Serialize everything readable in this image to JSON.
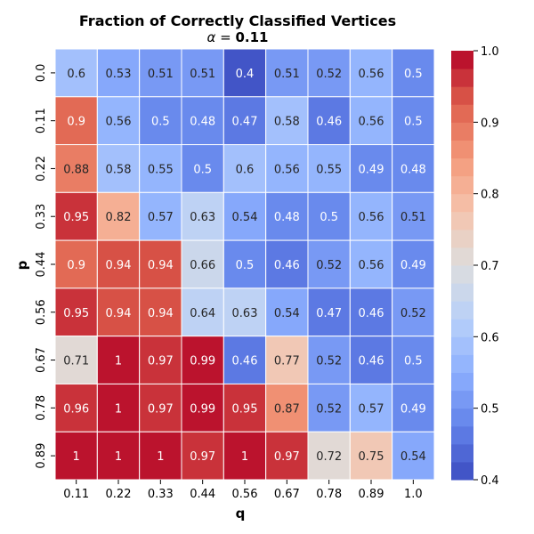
{
  "chart_data": {
    "type": "heatmap",
    "title": "Fraction of Correctly Classified Vertices",
    "subtitle_symbol": "α",
    "subtitle_equals": " = ",
    "subtitle_value": "0.11",
    "xlabel": "q",
    "ylabel": "p",
    "x_categories": [
      "0.11",
      "0.22",
      "0.33",
      "0.44",
      "0.56",
      "0.67",
      "0.78",
      "0.89",
      "1.0"
    ],
    "y_categories": [
      "0.0",
      "0.11",
      "0.22",
      "0.33",
      "0.44",
      "0.56",
      "0.67",
      "0.78",
      "0.89"
    ],
    "values": [
      [
        0.6,
        0.53,
        0.51,
        0.51,
        0.4,
        0.51,
        0.52,
        0.56,
        0.5
      ],
      [
        0.9,
        0.56,
        0.5,
        0.48,
        0.47,
        0.58,
        0.46,
        0.56,
        0.5
      ],
      [
        0.88,
        0.58,
        0.55,
        0.5,
        0.6,
        0.56,
        0.55,
        0.49,
        0.48
      ],
      [
        0.95,
        0.82,
        0.57,
        0.63,
        0.54,
        0.48,
        0.5,
        0.56,
        0.51
      ],
      [
        0.9,
        0.94,
        0.94,
        0.66,
        0.5,
        0.46,
        0.52,
        0.56,
        0.49
      ],
      [
        0.95,
        0.94,
        0.94,
        0.64,
        0.63,
        0.54,
        0.47,
        0.46,
        0.52
      ],
      [
        0.71,
        1,
        0.97,
        0.99,
        0.46,
        0.77,
        0.52,
        0.46,
        0.5
      ],
      [
        0.96,
        1,
        0.97,
        0.99,
        0.95,
        0.87,
        0.52,
        0.57,
        0.49
      ],
      [
        1,
        1,
        1,
        0.97,
        1,
        0.97,
        0.72,
        0.75,
        0.54
      ]
    ],
    "colormap": "coolwarm",
    "color_steps": 24,
    "vmin": 0.4,
    "vmax": 1.0,
    "colorbar_ticks": [
      "0.4",
      "0.5",
      "0.6",
      "0.7",
      "0.8",
      "0.9",
      "1.0"
    ]
  }
}
